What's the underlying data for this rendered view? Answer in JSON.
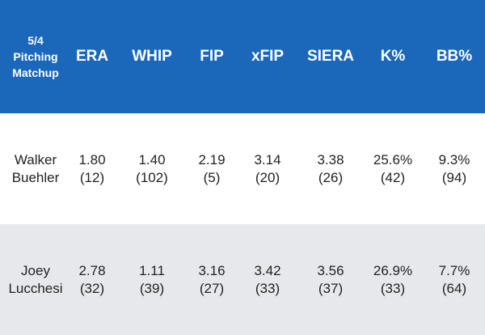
{
  "header": {
    "matchup_label": [
      "5/4",
      "Pitching",
      "Matchup"
    ],
    "columns": [
      "ERA",
      "WHIP",
      "FIP",
      "xFIP",
      "SIERA",
      "K%",
      "BB%"
    ]
  },
  "rows": [
    {
      "name": [
        "Walker",
        "Buehler"
      ],
      "stats": [
        {
          "value": "1.80",
          "rank": "(12)"
        },
        {
          "value": "1.40",
          "rank": "(102)"
        },
        {
          "value": "2.19",
          "rank": "(5)"
        },
        {
          "value": "3.14",
          "rank": "(20)"
        },
        {
          "value": "3.38",
          "rank": "(26)"
        },
        {
          "value": "25.6%",
          "rank": "(42)"
        },
        {
          "value": "9.3%",
          "rank": "(94)"
        }
      ]
    },
    {
      "name": [
        "Joey",
        "Lucchesi"
      ],
      "stats": [
        {
          "value": "2.78",
          "rank": "(32)"
        },
        {
          "value": "1.11",
          "rank": "(39)"
        },
        {
          "value": "3.16",
          "rank": "(27)"
        },
        {
          "value": "3.42",
          "rank": "(33)"
        },
        {
          "value": "3.56",
          "rank": "(37)"
        },
        {
          "value": "26.9%",
          "rank": "(33)"
        },
        {
          "value": "7.7%",
          "rank": "(64)"
        }
      ]
    }
  ],
  "colors": {
    "header_bg": "#1b67ba",
    "header_text": "#ffffff",
    "row_alt_bg": "#e7e8eb",
    "body_text": "#222222"
  }
}
